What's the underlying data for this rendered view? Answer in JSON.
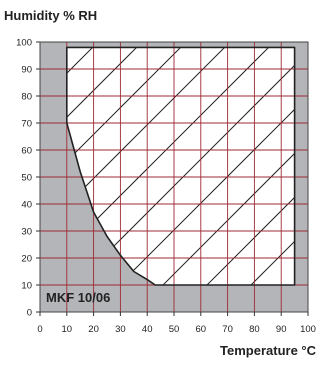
{
  "chart_data": {
    "type": "area",
    "title": "",
    "xlabel": "Temperature °C",
    "ylabel": "Humidity % RH",
    "xlim": [
      0,
      100
    ],
    "ylim": [
      0,
      100
    ],
    "x_ticks": [
      0,
      10,
      20,
      30,
      40,
      50,
      60,
      70,
      80,
      90,
      100
    ],
    "y_ticks": [
      0,
      10,
      20,
      30,
      40,
      50,
      60,
      70,
      80,
      90,
      100
    ],
    "x_tick_labels": [
      "0",
      "10",
      "20",
      "30",
      "40",
      "50",
      "60",
      "70",
      "80",
      "90",
      "100"
    ],
    "y_tick_labels": [
      "0",
      "10",
      "20",
      "30",
      "40",
      "50",
      "60",
      "70",
      "80",
      "90",
      "100"
    ],
    "grid": true,
    "annotation": "MKF 10/06",
    "operating_range": {
      "label": "MKF 10/06",
      "boundary": [
        {
          "x": 10,
          "y": 98
        },
        {
          "x": 95,
          "y": 98
        },
        {
          "x": 95,
          "y": 10
        },
        {
          "x": 43,
          "y": 10
        },
        {
          "x": 40,
          "y": 12
        },
        {
          "x": 35,
          "y": 15
        },
        {
          "x": 30,
          "y": 21
        },
        {
          "x": 25,
          "y": 28
        },
        {
          "x": 20,
          "y": 37
        },
        {
          "x": 15,
          "y": 52
        },
        {
          "x": 10,
          "y": 70
        }
      ]
    },
    "colors": {
      "outside_fill": "#b3b5b8",
      "inside_fill": "#ffffff",
      "grid": "#9e2a34",
      "hatch": "#222222",
      "boundary": "#222222",
      "frame": "#444444"
    }
  }
}
